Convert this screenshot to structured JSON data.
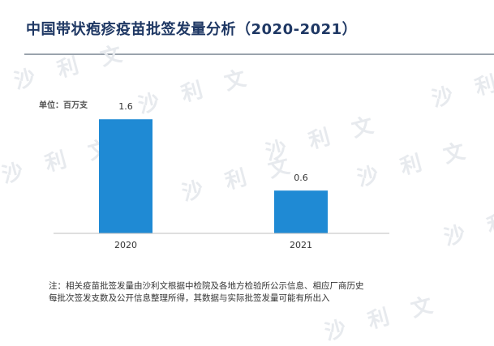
{
  "title": "中国带状疱疹疫苗批签发量分析（2020-2021）",
  "unit": "单位：百万支",
  "watermark": "沙 利 文",
  "colors": {
    "bar": "#1f8ad4",
    "title": "#1f3864",
    "axis": "#bfbfbf"
  },
  "chart_data": {
    "type": "bar",
    "categories": [
      "2020",
      "2021"
    ],
    "values": [
      1.6,
      0.6
    ],
    "data_labels": [
      "1.6",
      "0.6"
    ],
    "ylim": [
      0,
      1.75
    ],
    "grid": false,
    "legend": "none"
  },
  "notes": [
    "注：相关疫苗批签发量由沙利文根据中检院及各地方检验所公示信息、相应厂商历史",
    "每批次签发支数及公开信息整理所得，其数据与实际批签发量可能有所出入"
  ]
}
